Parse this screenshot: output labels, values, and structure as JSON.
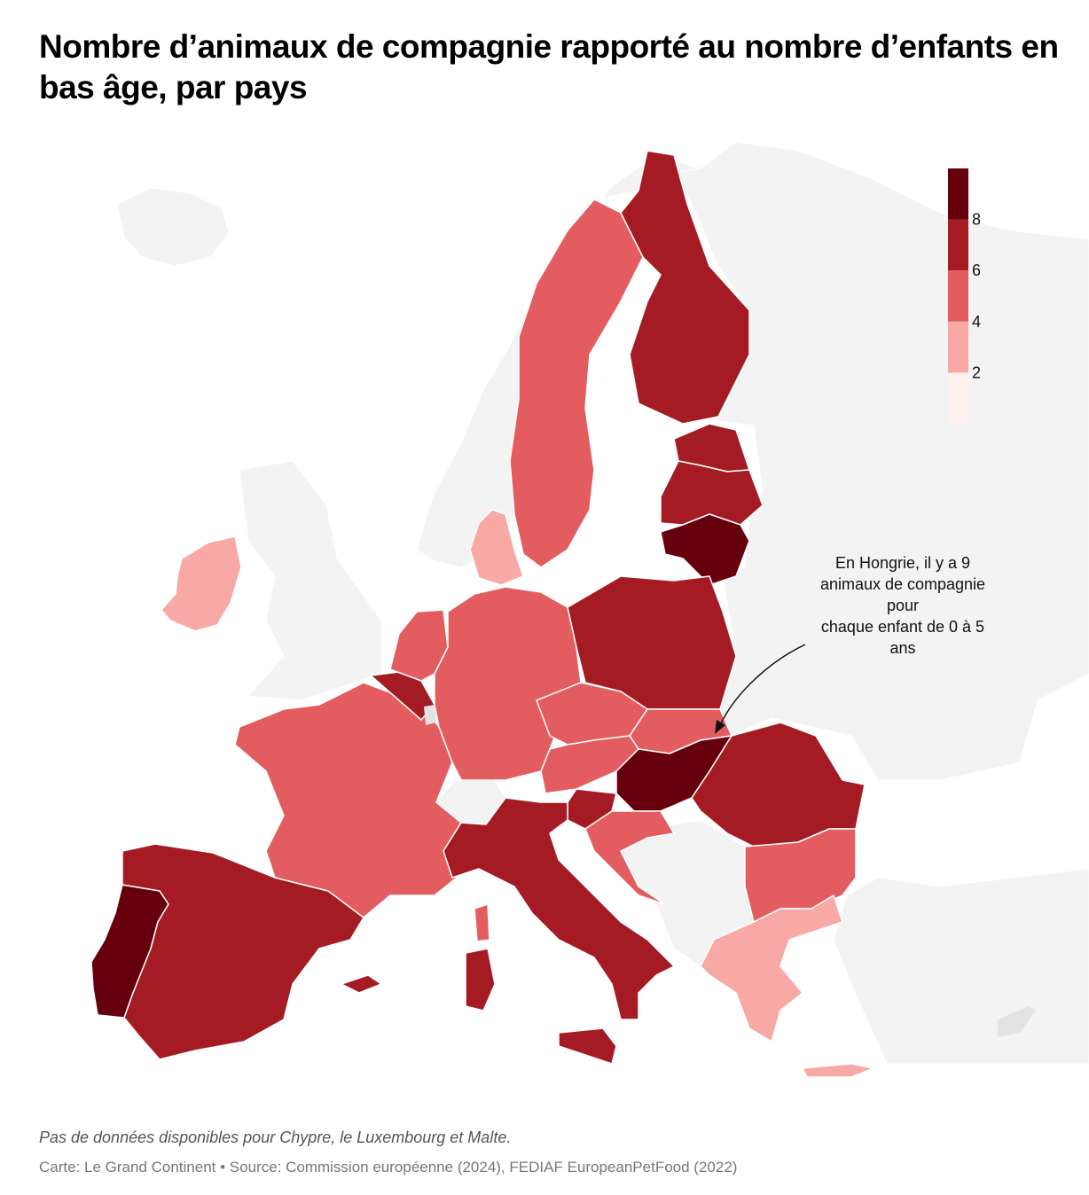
{
  "title": "Nombre d’animaux de compagnie rapporté au nombre d’enfants en bas âge, par pays",
  "legend": {
    "ticks": [
      "8",
      "6",
      "4",
      "2"
    ],
    "bins": [
      {
        "range": "8+",
        "color": "#67000d"
      },
      {
        "range": "6-8",
        "color": "#a51b24"
      },
      {
        "range": "4-6",
        "color": "#e35d60"
      },
      {
        "range": "2-4",
        "color": "#f8a9a5"
      },
      {
        "range": "0-2",
        "color": "#fdf2ef"
      }
    ]
  },
  "colors": {
    "no_data": "#f3f3f3",
    "no_data_eu": "#e3e3e3",
    "border": "#ffffff"
  },
  "countries": [
    {
      "name": "Hongrie",
      "bin": "8+"
    },
    {
      "name": "Portugal",
      "bin": "8+"
    },
    {
      "name": "Lituanie",
      "bin": "8+"
    },
    {
      "name": "Espagne",
      "bin": "6-8"
    },
    {
      "name": "Italie",
      "bin": "6-8"
    },
    {
      "name": "Pologne",
      "bin": "6-8"
    },
    {
      "name": "Roumanie",
      "bin": "6-8"
    },
    {
      "name": "Finlande",
      "bin": "6-8"
    },
    {
      "name": "Estonie",
      "bin": "6-8"
    },
    {
      "name": "Lettonie",
      "bin": "6-8"
    },
    {
      "name": "Belgique",
      "bin": "6-8"
    },
    {
      "name": "Slovénie",
      "bin": "6-8"
    },
    {
      "name": "France",
      "bin": "4-6"
    },
    {
      "name": "Allemagne",
      "bin": "4-6"
    },
    {
      "name": "Suède",
      "bin": "4-6"
    },
    {
      "name": "Pays-Bas",
      "bin": "4-6"
    },
    {
      "name": "Tchéquie",
      "bin": "4-6"
    },
    {
      "name": "Autriche",
      "bin": "4-6"
    },
    {
      "name": "Slovaquie",
      "bin": "4-6"
    },
    {
      "name": "Croatie",
      "bin": "4-6"
    },
    {
      "name": "Bulgarie",
      "bin": "4-6"
    },
    {
      "name": "Irlande",
      "bin": "2-4"
    },
    {
      "name": "Danemark",
      "bin": "2-4"
    },
    {
      "name": "Grèce",
      "bin": "2-4"
    }
  ],
  "annotation": {
    "lines": [
      "En Hongrie, il y a 9",
      "animaux de compagnie",
      "pour",
      "chaque enfant de 0 à 5",
      "ans"
    ],
    "country": "Hongrie",
    "value": 9
  },
  "note": "Pas de données disponibles pour Chypre, le Luxembourg et Malte.",
  "source": "Carte: Le Grand Continent • Source: Commission européenne (2024), FEDIAF EuropeanPetFood (2022)"
}
